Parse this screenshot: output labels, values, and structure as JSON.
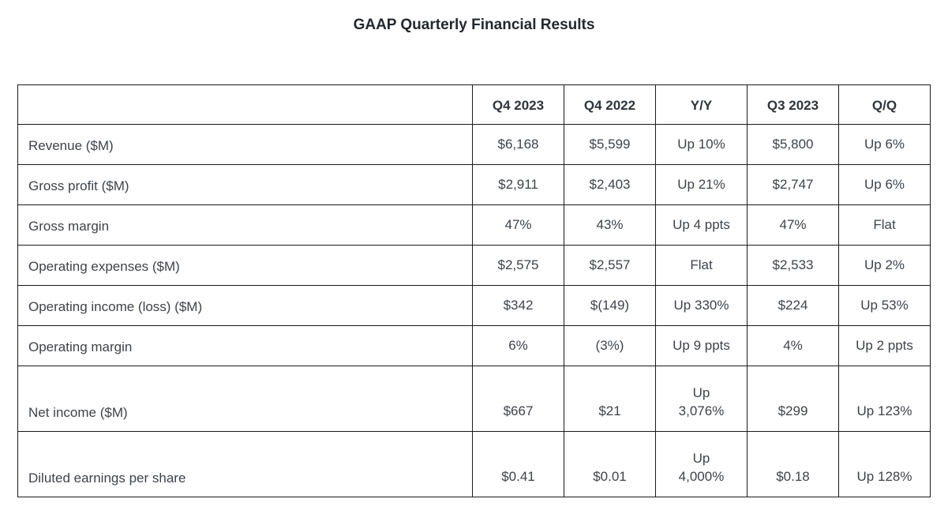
{
  "page": {
    "title": "GAAP Quarterly Financial Results"
  },
  "chart_data": {
    "type": "table",
    "title": "GAAP Quarterly Financial Results",
    "columns": [
      "",
      "Q4 2023",
      "Q4 2022",
      "Y/Y",
      "Q3 2023",
      "Q/Q"
    ],
    "rows": [
      {
        "label": "Revenue ($M)",
        "values": [
          "$6,168",
          "$5,599",
          "Up 10%",
          "$5,800",
          "Up 6%"
        ]
      },
      {
        "label": "Gross profit ($M)",
        "values": [
          "$2,911",
          "$2,403",
          "Up 21%",
          "$2,747",
          "Up 6%"
        ]
      },
      {
        "label": "Gross margin",
        "values": [
          "47%",
          "43%",
          "Up 4 ppts",
          "47%",
          "Flat"
        ]
      },
      {
        "label": "Operating expenses ($M)",
        "values": [
          "$2,575",
          "$2,557",
          "Flat",
          "$2,533",
          "Up 2%"
        ]
      },
      {
        "label": "Operating income (loss) ($M)",
        "values": [
          "$342",
          "$(149)",
          "Up 330%",
          "$224",
          "Up 53%"
        ]
      },
      {
        "label": "Operating margin",
        "values": [
          "6%",
          "(3%)",
          "Up 9 ppts",
          "4%",
          "Up 2 ppts"
        ]
      },
      {
        "label": "Net income ($M)",
        "values": [
          "$667",
          "$21",
          "Up\n3,076%",
          "$299",
          "Up 123%"
        ]
      },
      {
        "label": "Diluted earnings per share",
        "values": [
          "$0.41",
          "$0.01",
          "Up\n4,000%",
          "$0.18",
          "Up 128%"
        ]
      }
    ]
  },
  "colors": {
    "background": "#ffffff",
    "border": "#1a1a1a",
    "title_text": "#23282d",
    "body_text": "#3e4349"
  }
}
